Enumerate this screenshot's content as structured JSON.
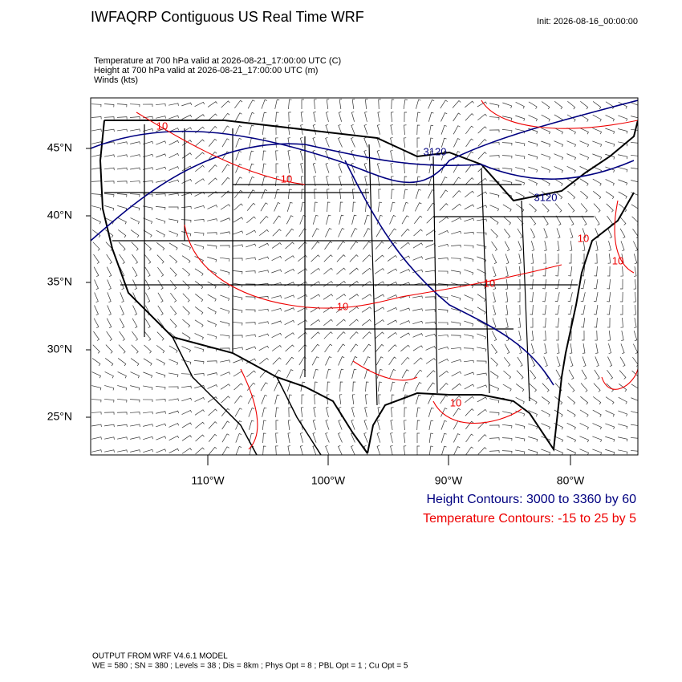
{
  "header": {
    "title": "IWFAQRP Contiguous US Real Time WRF",
    "init": "Init: 2026-08-16_00:00:00"
  },
  "fields": [
    "Temperature at 700 hPa valid at 2026-08-21_17:00:00 UTC   (C)",
    "Height at 700 hPa valid at 2026-08-21_17:00:00 UTC   (m)",
    "Winds   (kts)"
  ],
  "map": {
    "lat_labels": [
      "45°N",
      "40°N",
      "35°N",
      "30°N",
      "25°N"
    ],
    "lon_labels": [
      "110°W",
      "100°W",
      "90°W",
      "80°W"
    ],
    "contour_labels": [
      "10",
      "10",
      "10",
      "10",
      "10",
      "10",
      "10",
      "3120",
      "3120"
    ]
  },
  "legend": [
    "Height Contours: 3000 to 3360 by 60",
    "Temperature Contours: -15 to 25 by 5"
  ],
  "footer": [
    "OUTPUT FROM WRF V4.6.1 MODEL",
    "WE = 580 ; SN = 380 ; Levels = 38 ; Dis = 8km ; Phys Opt = 8 ; PBL Opt = 1 ; Cu Opt = 5"
  ]
}
